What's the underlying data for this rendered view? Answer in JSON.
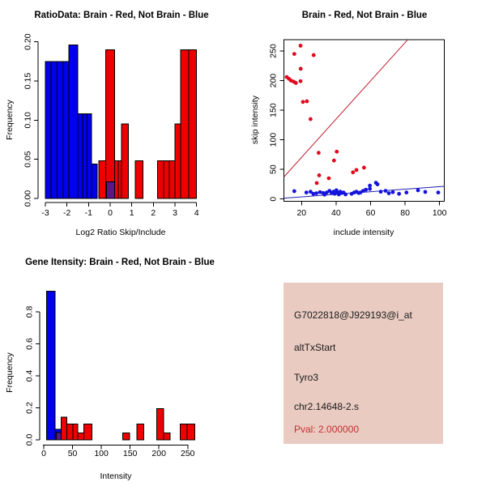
{
  "figure": {
    "bg": "#FFFFFF"
  },
  "panels": {
    "info_box": {
      "bg": "#E9CBC2",
      "lines": [
        {
          "text": "G7022818@J929193@i_at",
          "color": "#1A1A1A"
        },
        {
          "text": "altTxStart",
          "color": "#1A1A1A"
        },
        {
          "text": "Tyro3",
          "color": "#1A1A1A"
        },
        {
          "text": "chr2.14648-2.s",
          "color": "#1A1A1A"
        },
        {
          "text": "Pval: 2.000000",
          "color": "#C53030"
        }
      ]
    }
  },
  "chart_data": [
    {
      "id": "ratio-histogram",
      "type": "bar",
      "title": "RatioData: Brain - Red, Not Brain - Blue",
      "xlabel": "Log2 Ratio Skip/Include",
      "ylabel": "Frequency",
      "xlim": [
        -3.2,
        4.2
      ],
      "ylim": [
        0,
        0.205
      ],
      "x_ticks": [
        -3,
        -2,
        -1,
        0,
        1,
        2,
        3,
        4
      ],
      "y_ticks": [
        0,
        0.05,
        0.1,
        0.15,
        0.2
      ],
      "y_tick_labels": [
        "0.00",
        "0.05",
        "0.10",
        "0.15",
        "0.20"
      ],
      "colors": {
        "brain": "#EE0000",
        "not_brain": "#0000EE",
        "overlap": "#5B1687"
      },
      "bars": [
        {
          "x0": -3.0,
          "x1": -2.73,
          "h": 0.175,
          "series": "not_brain"
        },
        {
          "x0": -2.73,
          "x1": -2.45,
          "h": 0.175,
          "series": "not_brain"
        },
        {
          "x0": -2.45,
          "x1": -2.18,
          "h": 0.175,
          "series": "not_brain"
        },
        {
          "x0": -2.18,
          "x1": -1.91,
          "h": 0.175,
          "series": "not_brain"
        },
        {
          "x0": -1.91,
          "x1": -1.5,
          "h": 0.196,
          "series": "not_brain"
        },
        {
          "x0": -1.5,
          "x1": -1.28,
          "h": 0.108,
          "series": "not_brain"
        },
        {
          "x0": -1.28,
          "x1": -1.07,
          "h": 0.108,
          "series": "not_brain"
        },
        {
          "x0": -1.07,
          "x1": -0.86,
          "h": 0.108,
          "series": "not_brain"
        },
        {
          "x0": -0.86,
          "x1": -0.6,
          "h": 0.044,
          "series": "not_brain"
        },
        {
          "x0": -0.52,
          "x1": -0.2,
          "h": 0.048,
          "series": "brain"
        },
        {
          "x0": -0.2,
          "x1": 0.21,
          "h": 0.19,
          "series": "brain"
        },
        {
          "x0": 0.21,
          "x1": 0.37,
          "h": 0.048,
          "series": "brain"
        },
        {
          "x0": 0.37,
          "x1": 0.53,
          "h": 0.048,
          "series": "brain"
        },
        {
          "x0": 0.53,
          "x1": 0.84,
          "h": 0.095,
          "series": "brain"
        },
        {
          "x0": 1.17,
          "x1": 1.52,
          "h": 0.048,
          "series": "brain"
        },
        {
          "x0": 2.2,
          "x1": 2.47,
          "h": 0.048,
          "series": "brain"
        },
        {
          "x0": 2.47,
          "x1": 2.73,
          "h": 0.048,
          "series": "brain"
        },
        {
          "x0": 2.73,
          "x1": 3.0,
          "h": 0.048,
          "series": "brain"
        },
        {
          "x0": 3.0,
          "x1": 3.27,
          "h": 0.095,
          "series": "brain"
        },
        {
          "x0": 3.27,
          "x1": 3.63,
          "h": 0.19,
          "series": "brain"
        },
        {
          "x0": 3.63,
          "x1": 4.0,
          "h": 0.19,
          "series": "brain"
        },
        {
          "x0": -0.16,
          "x1": 0.21,
          "h": 0.021,
          "series": "overlap"
        }
      ]
    },
    {
      "id": "intensity-scatter",
      "type": "scatter",
      "title": "Brain - Red, Not Brain - Blue",
      "xlabel": "include intensity",
      "ylabel": "skip intensity",
      "xlim": [
        9.9,
        103
      ],
      "ylim": [
        -4,
        271
      ],
      "x_ticks": [
        20,
        40,
        60,
        80,
        100
      ],
      "y_ticks": [
        0,
        50,
        100,
        150,
        200,
        250
      ],
      "series": [
        {
          "name": "brain",
          "color": "#DF0A1E",
          "points": [
            [
              19.4,
              259
            ],
            [
              15.8,
              245
            ],
            [
              27,
              243
            ],
            [
              19.5,
              220
            ],
            [
              11.4,
              206
            ],
            [
              12.7,
              203
            ],
            [
              13.9,
              200
            ],
            [
              15.5,
              198
            ],
            [
              16.7,
              196
            ],
            [
              19.4,
              199
            ],
            [
              20.8,
              164
            ],
            [
              23.1,
              165
            ],
            [
              25.2,
              135
            ],
            [
              29.9,
              78
            ],
            [
              40.4,
              80
            ],
            [
              38.8,
              65
            ],
            [
              49.8,
              45
            ],
            [
              51.8,
              49
            ],
            [
              56.2,
              53
            ],
            [
              30.2,
              40
            ],
            [
              35.8,
              35
            ],
            [
              28.8,
              27
            ]
          ]
        },
        {
          "name": "not_brain",
          "color": "#1414DC",
          "points": [
            [
              15.8,
              13.3
            ],
            [
              22.8,
              11
            ],
            [
              25.2,
              12.4
            ],
            [
              26.8,
              8.8
            ],
            [
              28.6,
              9.7
            ],
            [
              30.7,
              11.6
            ],
            [
              32.5,
              10.2
            ],
            [
              33.3,
              7.4
            ],
            [
              34.6,
              11
            ],
            [
              36.2,
              13.8
            ],
            [
              37.4,
              10.2
            ],
            [
              38.5,
              12.4
            ],
            [
              39.2,
              8.8
            ],
            [
              40.2,
              14.7
            ],
            [
              40.8,
              11
            ],
            [
              41.6,
              7.8
            ],
            [
              42.4,
              12.4
            ],
            [
              43.2,
              10.2
            ],
            [
              44.3,
              11
            ],
            [
              45.5,
              7.8
            ],
            [
              49,
              8.8
            ],
            [
              50.5,
              11
            ],
            [
              51.8,
              12.4
            ],
            [
              53.1,
              10.2
            ],
            [
              54.1,
              11
            ],
            [
              55.7,
              13.8
            ],
            [
              57.3,
              15.7
            ],
            [
              59.6,
              17.1
            ],
            [
              59.6,
              22.6
            ],
            [
              63.1,
              27.5
            ],
            [
              64,
              24.8
            ],
            [
              65.9,
              12.4
            ],
            [
              68.7,
              13.8
            ],
            [
              70.6,
              9.7
            ],
            [
              72.9,
              11.6
            ],
            [
              76.5,
              8.8
            ],
            [
              80.8,
              11
            ],
            [
              87.5,
              14.7
            ],
            [
              91.7,
              12
            ],
            [
              99.2,
              11
            ]
          ]
        }
      ],
      "lines": [
        {
          "name": "brain-fit",
          "color": "#BE1E2D",
          "from": [
            9.9,
            37.7
          ],
          "to": [
            81.5,
            269
          ]
        },
        {
          "name": "not-brain-fit",
          "color": "#2020B2",
          "from": [
            9.9,
            1.4
          ],
          "to": [
            102.7,
            21.5
          ]
        }
      ]
    },
    {
      "id": "gene-intensity-histogram",
      "type": "bar",
      "title": "Gene Itensity: Brain - Red, Not Brain - Blue",
      "xlabel": "Intensity",
      "ylabel": "Frequency",
      "xlim": [
        -7,
        272
      ],
      "ylim": [
        0,
        0.95
      ],
      "x_ticks": [
        0,
        50,
        100,
        150,
        200,
        250
      ],
      "y_ticks": [
        0,
        0.2,
        0.4,
        0.6,
        0.8
      ],
      "y_tick_labels": [
        "0.0",
        "0.2",
        "0.4",
        "0.6",
        "0.8"
      ],
      "colors": {
        "brain": "#EE0000",
        "not_brain": "#0000EE",
        "overlap": "#5B1687"
      },
      "bars": [
        {
          "x0": 5,
          "x1": 20,
          "h": 0.93,
          "series": "not_brain"
        },
        {
          "x0": 20,
          "x1": 30,
          "h": 0.065,
          "series": "not_brain"
        },
        {
          "x0": 30,
          "x1": 40,
          "h": 0.143,
          "series": "brain"
        },
        {
          "x0": 40,
          "x1": 50.6,
          "h": 0.098,
          "series": "brain"
        },
        {
          "x0": 50.6,
          "x1": 59,
          "h": 0.098,
          "series": "brain"
        },
        {
          "x0": 59,
          "x1": 69.3,
          "h": 0.044,
          "series": "brain"
        },
        {
          "x0": 69.3,
          "x1": 83.4,
          "h": 0.098,
          "series": "brain"
        },
        {
          "x0": 137.4,
          "x1": 149,
          "h": 0.044,
          "series": "brain"
        },
        {
          "x0": 162,
          "x1": 173.4,
          "h": 0.098,
          "series": "brain"
        },
        {
          "x0": 196,
          "x1": 208,
          "h": 0.195,
          "series": "brain"
        },
        {
          "x0": 208,
          "x1": 219.4,
          "h": 0.044,
          "series": "brain"
        },
        {
          "x0": 237,
          "x1": 249,
          "h": 0.098,
          "series": "brain"
        },
        {
          "x0": 249,
          "x1": 262,
          "h": 0.098,
          "series": "brain"
        },
        {
          "x0": 21.5,
          "x1": 30,
          "h": 0.045,
          "series": "overlap"
        }
      ]
    }
  ]
}
